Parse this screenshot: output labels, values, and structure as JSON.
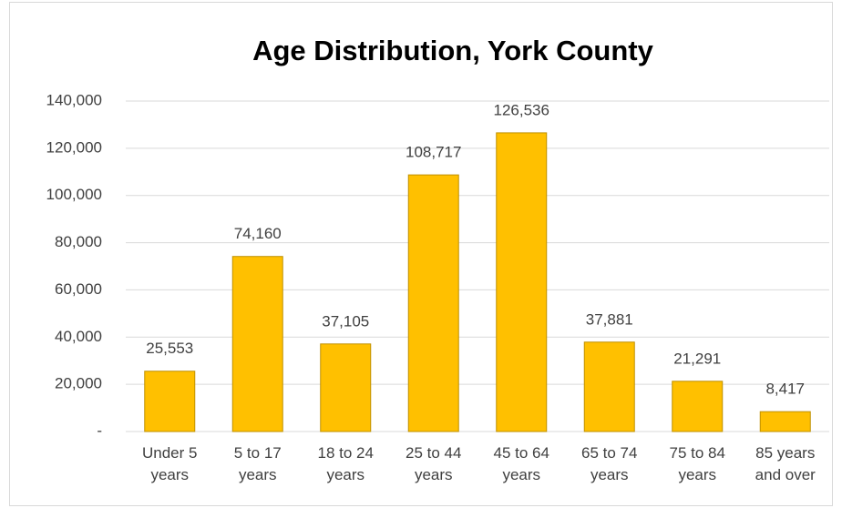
{
  "chart_data": {
    "type": "bar",
    "title": "Age Distribution, York County",
    "categories": [
      "Under 5 years",
      "5 to 17 years",
      "18 to 24 years",
      "25 to 44 years",
      "45 to 64 years",
      "65 to 74 years",
      "75 to 84 years",
      "85 years and over"
    ],
    "values": [
      25553,
      74160,
      37105,
      108717,
      126536,
      37881,
      21291,
      8417
    ],
    "value_labels": [
      "25,553",
      "74,160",
      "37,105",
      "108,717",
      "126,536",
      "37,881",
      "21,291",
      "8,417"
    ],
    "color": "#FFC000",
    "ylim": [
      0,
      140000
    ],
    "yticks": [
      {
        "value": 0,
        "label": "-"
      },
      {
        "value": 20000,
        "label": "20,000"
      },
      {
        "value": 40000,
        "label": "40,000"
      },
      {
        "value": 60000,
        "label": "60,000"
      },
      {
        "value": 80000,
        "label": "80,000"
      },
      {
        "value": 100000,
        "label": "100,000"
      },
      {
        "value": 120000,
        "label": "120,000"
      },
      {
        "value": 140000,
        "label": "140,000"
      }
    ],
    "grid": true
  }
}
